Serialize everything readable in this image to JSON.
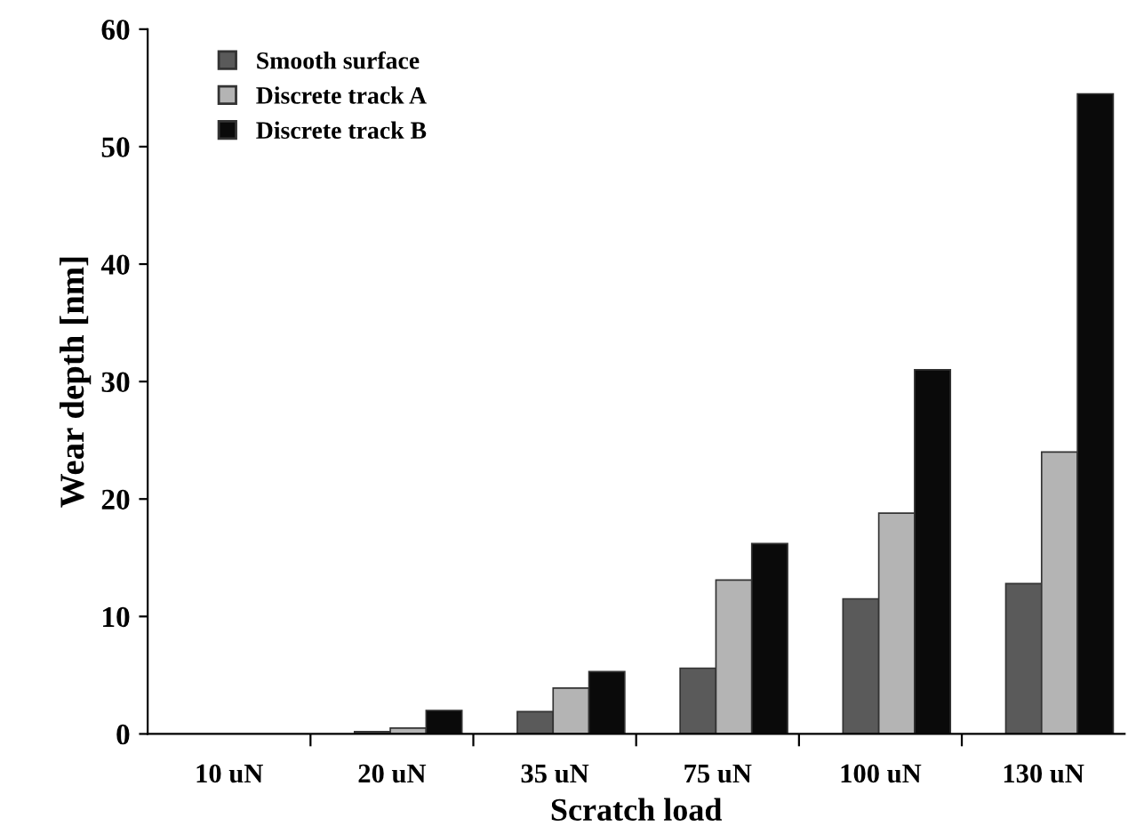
{
  "chart_data": {
    "type": "bar",
    "xlabel": "Scratch load",
    "ylabel": "Wear depth [nm]",
    "categories": [
      "10 uN",
      "20 uN",
      "35 uN",
      "75 uN",
      "100 uN",
      "130 uN"
    ],
    "series": [
      {
        "name": "Smooth surface",
        "color": "#5a5a5a",
        "values": [
          0,
          0.2,
          1.9,
          5.6,
          11.5,
          12.8
        ]
      },
      {
        "name": "Discrete track A",
        "color": "#b4b4b4",
        "values": [
          0,
          0.5,
          3.9,
          13.1,
          18.8,
          24.0
        ]
      },
      {
        "name": "Discrete track B",
        "color": "#0a0a0a",
        "values": [
          0,
          2.0,
          5.3,
          16.2,
          31.0,
          54.5
        ]
      }
    ],
    "ylim": [
      0,
      60
    ],
    "yticks": [
      0,
      10,
      20,
      30,
      40,
      50,
      60
    ],
    "grid": false,
    "legend": "top left"
  }
}
